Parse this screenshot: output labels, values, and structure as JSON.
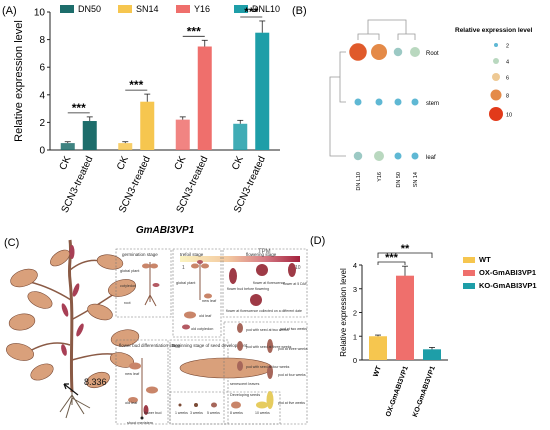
{
  "panels": {
    "A": {
      "label": "(A)"
    },
    "B": {
      "label": "(B)"
    },
    "C": {
      "label": "(C)"
    },
    "D": {
      "label": "(D)"
    }
  },
  "chart_data": [
    {
      "type": "bar",
      "panel": "A",
      "ylabel": "Relative expression level",
      "ylim": [
        0,
        10
      ],
      "yticks": [
        0,
        2,
        4,
        6,
        8,
        10
      ],
      "tick_labels": [
        "CK",
        "SCN3-treated",
        "CK",
        "SCN3-treated",
        "CK",
        "SCN3-treated",
        "CK",
        "SCN3-treated"
      ],
      "legend_position": "top",
      "series": [
        {
          "name": "DN50",
          "color": "#1d6d6b",
          "categories": [
            "CK",
            "SCN3-treated"
          ],
          "values": [
            0.5,
            2.1
          ],
          "errors": [
            0.1,
            0.3
          ]
        },
        {
          "name": "SN14",
          "color": "#f6c64f",
          "categories": [
            "CK",
            "SCN3-treated"
          ],
          "values": [
            0.5,
            3.5
          ],
          "errors": [
            0.1,
            0.55
          ]
        },
        {
          "name": "Y16",
          "color": "#ef6f6c",
          "categories": [
            "CK",
            "SCN3-treated"
          ],
          "values": [
            2.2,
            7.5
          ],
          "errors": [
            0.2,
            0.45
          ]
        },
        {
          "name": "DNL10",
          "color": "#1e9ea8",
          "categories": [
            "CK",
            "SCN3-treated"
          ],
          "values": [
            1.9,
            8.5
          ],
          "errors": [
            0.25,
            0.85
          ]
        }
      ],
      "annotations": [
        "***",
        "***",
        "***",
        "***"
      ],
      "gene_label": "GmABI3VP1"
    },
    {
      "type": "heatmap",
      "panel": "B",
      "rows": [
        "Root",
        "stem",
        "leaf"
      ],
      "columns": [
        "DN L10",
        "Y16",
        "DN 50",
        "SN 14"
      ],
      "values": [
        [
          9,
          8,
          3,
          4
        ],
        [
          2,
          2,
          2,
          2
        ],
        [
          3,
          4,
          2,
          2
        ]
      ],
      "legend_title": "Relative expression level",
      "legend_values": [
        "2",
        "4",
        "6",
        "8",
        "10"
      ],
      "legend_colors": [
        "#5fb8d4",
        "#b9d8bf",
        "#eec994",
        "#e48a48",
        "#e23a1a"
      ]
    },
    {
      "type": "bar",
      "panel": "D",
      "ylabel": "Relative expression level",
      "ylim": [
        0,
        4
      ],
      "yticks": [
        0,
        1,
        2,
        3,
        4
      ],
      "categories": [
        "WT",
        "OX-GmABI3VP1",
        "KO-GmABI3VP1"
      ],
      "values": [
        1.0,
        3.55,
        0.45
      ],
      "errors": [
        0.05,
        0.4,
        0.08
      ],
      "colors": [
        "#f6c64f",
        "#ef6f6c",
        "#1e9ea8"
      ],
      "legend_entries": [
        "WT",
        "OX-GmABI3VP1",
        "KO-GmABI3VP1"
      ],
      "legend_position": "right",
      "annotations": [
        {
          "text": "***",
          "between": [
            "WT",
            "OX-GmABI3VP1"
          ]
        },
        {
          "text": "**",
          "between": [
            "WT",
            "KO-GmABI3VP1"
          ]
        }
      ]
    }
  ],
  "tpm_bar": {
    "label": "TPM",
    "min": "1",
    "max": "10",
    "colors": [
      "#fbf3c0",
      "#f3c9a0",
      "#d77d86",
      "#a3213d"
    ]
  },
  "plant": {
    "value": "8.336"
  },
  "boxes": {
    "germination": {
      "title": "germination stage",
      "labels": [
        "global plant",
        "cotyledon",
        "root"
      ]
    },
    "trefoil": {
      "title": "trefoil stage",
      "labels": [
        "global plant",
        "new leaf",
        "old leaf",
        "old cotyledon"
      ]
    },
    "flowering": {
      "title": "flowering stage",
      "labels": [
        "flower bud before flowering",
        "flower at florescence",
        "flower at 5 DAF",
        "flower at florescence collected on a different date"
      ]
    },
    "flower_bud": {
      "title": "flower bud differentiation stage",
      "labels": [
        "new leaf",
        "old leaf",
        "flower bud",
        "shoot meristem"
      ]
    },
    "seed": {
      "title": "Beginning stage of seed development",
      "labels": [
        "senescent leaves",
        "Developing seeds",
        "1 weeks",
        "3 weeks",
        "5 weeks",
        "8 weeks",
        "10 weeks"
      ]
    },
    "pods": {
      "labels": [
        "pod with seed at two weeks",
        "pod at two weeks",
        "pod with seed at three weeks",
        "pod at three weeks",
        "pod with seed at four weeks",
        "pod at four weeks",
        "pod at five weeks"
      ]
    }
  }
}
